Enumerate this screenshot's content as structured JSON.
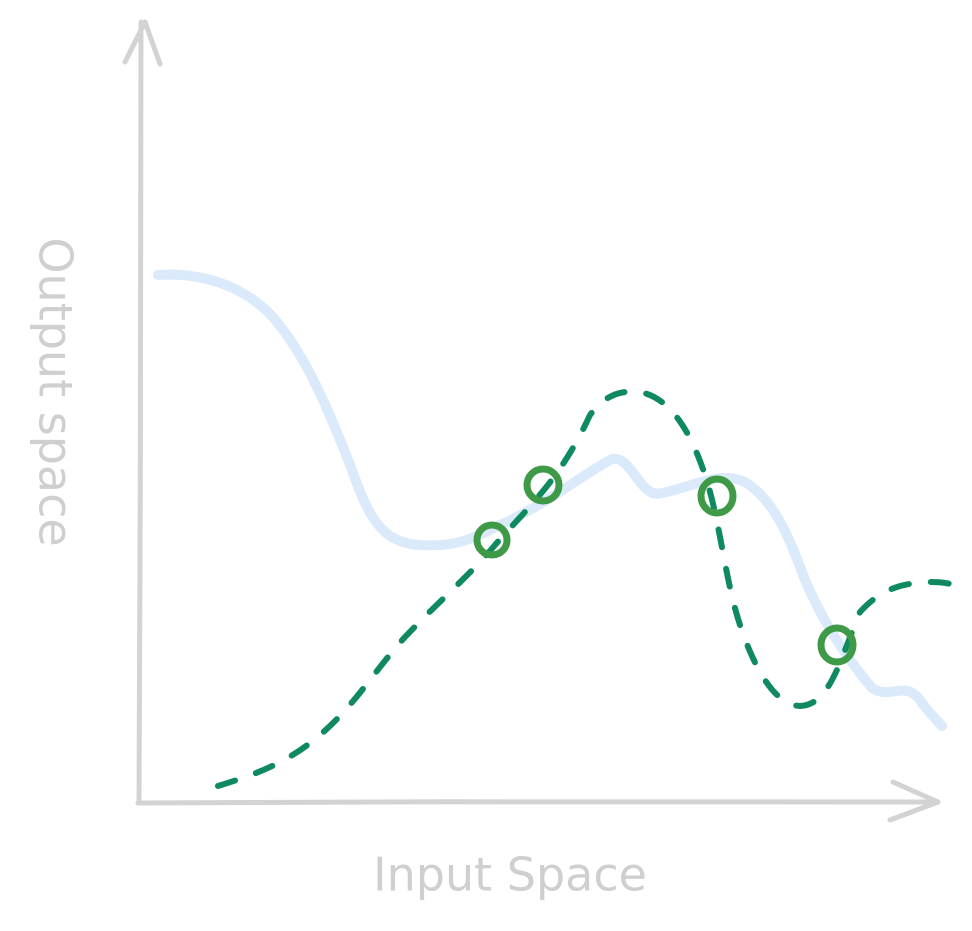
{
  "labels": {
    "x_axis": "Input Space",
    "y_axis": "Output space"
  }
}
